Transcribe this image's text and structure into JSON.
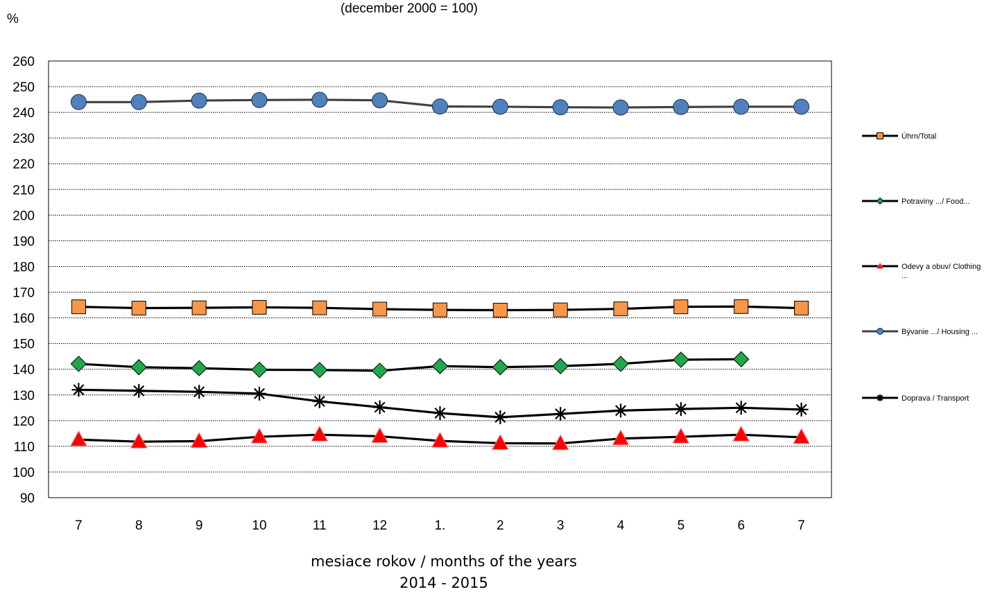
{
  "chart_data": {
    "type": "line",
    "subtitle": "(december 2000 = 100)",
    "y_unit": "%",
    "xlabel_line1": "mesiace rokov / months of the years",
    "xlabel_line2": "2014 - 2015",
    "categories": [
      "7",
      "8",
      "9",
      "10",
      "11",
      "12",
      "1.",
      "2",
      "3",
      "4",
      "5",
      "6",
      "7"
    ],
    "ylim": [
      90,
      260
    ],
    "ystep": 10,
    "grid": "horizontal dotted",
    "legend_position": "right",
    "series": [
      {
        "name": "Úhrn/Total",
        "marker": "square",
        "color": "#f79646",
        "line_color": "#000000",
        "values": [
          164.3,
          163.8,
          163.9,
          164.1,
          163.9,
          163.4,
          163.1,
          163.0,
          163.1,
          163.5,
          164.3,
          164.4,
          163.8
        ]
      },
      {
        "name": "Potraviny .../ Food...",
        "marker": "diamond",
        "color": "#1fa84a",
        "line_color": "#000000",
        "values": [
          142.1,
          140.8,
          140.4,
          139.8,
          139.7,
          139.4,
          141.2,
          140.8,
          141.2,
          142.1,
          143.7,
          143.9,
          null
        ]
      },
      {
        "name": "Odevy a obuv/ Clothing ...",
        "marker": "triangle",
        "color": "#ff0000",
        "line_color": "#000000",
        "values": [
          112.6,
          111.8,
          112.0,
          113.7,
          114.5,
          113.9,
          112.1,
          111.2,
          111.1,
          113.0,
          113.7,
          114.5,
          113.5
        ]
      },
      {
        "name": "Bývanie .../ Housing ...",
        "marker": "circle",
        "color": "#4f81bd",
        "line_color": "#404040",
        "values": [
          244.0,
          244.0,
          244.6,
          244.8,
          244.9,
          244.7,
          242.3,
          242.2,
          242.0,
          241.9,
          242.1,
          242.2,
          242.2
        ]
      },
      {
        "name": "Doprava / Transport",
        "marker": "star",
        "color": "#000000",
        "line_color": "#000000",
        "values": [
          132.0,
          131.6,
          131.2,
          130.5,
          127.5,
          125.2,
          122.9,
          121.3,
          122.6,
          123.9,
          124.5,
          125.0,
          124.3
        ]
      }
    ]
  }
}
